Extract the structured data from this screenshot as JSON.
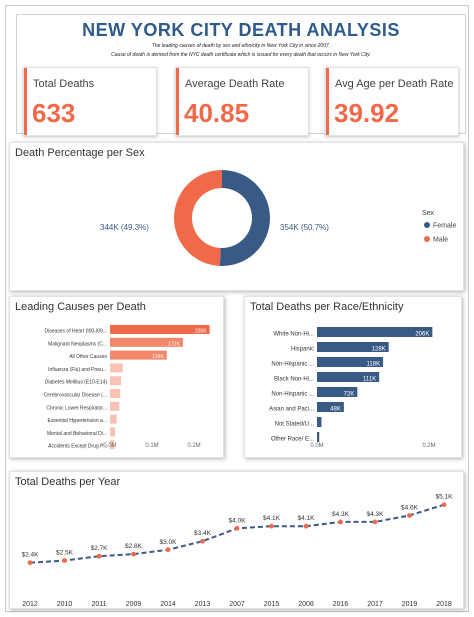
{
  "header": {
    "title": "NEW YORK CITY DEATH ANALYSIS",
    "subtitle1": "The leading causes of death by sex and ethnicity in New York City in since 2007.",
    "subtitle2": "Cause of death is derived from the NYC death certificate which is issued for every death that occurs in New York City."
  },
  "kpis": [
    {
      "label": "Total Deaths",
      "value": "633"
    },
    {
      "label": "Average Death Rate",
      "value": "40.85"
    },
    {
      "label": "Avg Age per Death Rate",
      "value": "39.92"
    }
  ],
  "colors": {
    "navy": "#3a5a86",
    "orange": "#f06a4a",
    "salmon": "#f4a58a",
    "title_blue": "#2e5a8c"
  },
  "sex_card": {
    "title": "Death Percentage per Sex"
  },
  "causes_card": {
    "title": "Leading Causes per Death"
  },
  "race_card": {
    "title": "Total Deaths per Race/Ethnicity"
  },
  "year_card": {
    "title": "Total Deaths per Year"
  },
  "chart_data": [
    {
      "type": "pie",
      "title": "Death Percentage per Sex",
      "legend_title": "Sex",
      "legend_position": "right",
      "slices": [
        {
          "name": "Female",
          "value": 354,
          "label": "354K (50.7%)",
          "color": "#3a5a86"
        },
        {
          "name": "Male",
          "value": 344,
          "label": "344K (49.3%)",
          "color": "#f06a4a"
        }
      ]
    },
    {
      "type": "bar",
      "orientation": "horizontal",
      "title": "Leading Causes per Death",
      "categories": [
        "Diseases of Heart (I00-I09...",
        "Malignant Neoplasms (C...",
        "All Other Causes",
        "Influenza (Flu) and Pneu...",
        "Diabetes Mellitus (E10-E14)",
        "Cerebrovascular Disease (...",
        "Chronic Lower Respirator...",
        "Essential Hypertension a...",
        "Mental and Behavioral Di...",
        "Accidents Except Drug P..."
      ],
      "values": [
        0.235,
        0.172,
        0.134,
        0.03,
        0.026,
        0.024,
        0.022,
        0.016,
        0.012,
        0.01
      ],
      "data_labels": [
        "235K",
        "172K",
        "134K",
        "",
        "",
        "",
        "",
        "",
        "",
        ""
      ],
      "xlim": [
        0,
        0.25
      ],
      "xticks": [
        "0.0M",
        "0.1M",
        "0.2M"
      ]
    },
    {
      "type": "bar",
      "orientation": "horizontal",
      "title": "Total Deaths per Race/Ethnicity",
      "categories": [
        "White Non-Hi...",
        "Hispanic",
        "Non-Hispanic ...",
        "Black Non-Hi...",
        "Non-Hispanic ...",
        "Asian and Paci...",
        "Not Stated/U...",
        "Other Race/ E..."
      ],
      "values": [
        0.206,
        0.128,
        0.118,
        0.111,
        0.072,
        0.048,
        0.008,
        0.004
      ],
      "data_labels": [
        "206K",
        "128K",
        "118K",
        "111K",
        "72K",
        "48K",
        "",
        ""
      ],
      "xlim": [
        0,
        0.25
      ],
      "xticks": [
        "0.0M",
        "0.2M"
      ]
    },
    {
      "type": "line",
      "title": "Total Deaths per Year",
      "categories": [
        "2012",
        "2010",
        "2011",
        "2009",
        "2014",
        "2013",
        "2007",
        "2015",
        "2008",
        "2016",
        "2017",
        "2019",
        "2018"
      ],
      "values": [
        2.4,
        2.5,
        2.7,
        2.8,
        3.0,
        3.4,
        4.0,
        4.1,
        4.1,
        4.3,
        4.3,
        4.6,
        5.1
      ],
      "data_labels": [
        "$2.4K",
        "$2.5K",
        "$2.7K",
        "$2.8K",
        "$3.0K",
        "$3.4K",
        "$4.0K",
        "$4.1K",
        "$4.1K",
        "$4.3K",
        "$4.3K",
        "$4.6K",
        "$5.1K"
      ],
      "ylim": [
        1.5,
        5.6
      ]
    }
  ]
}
